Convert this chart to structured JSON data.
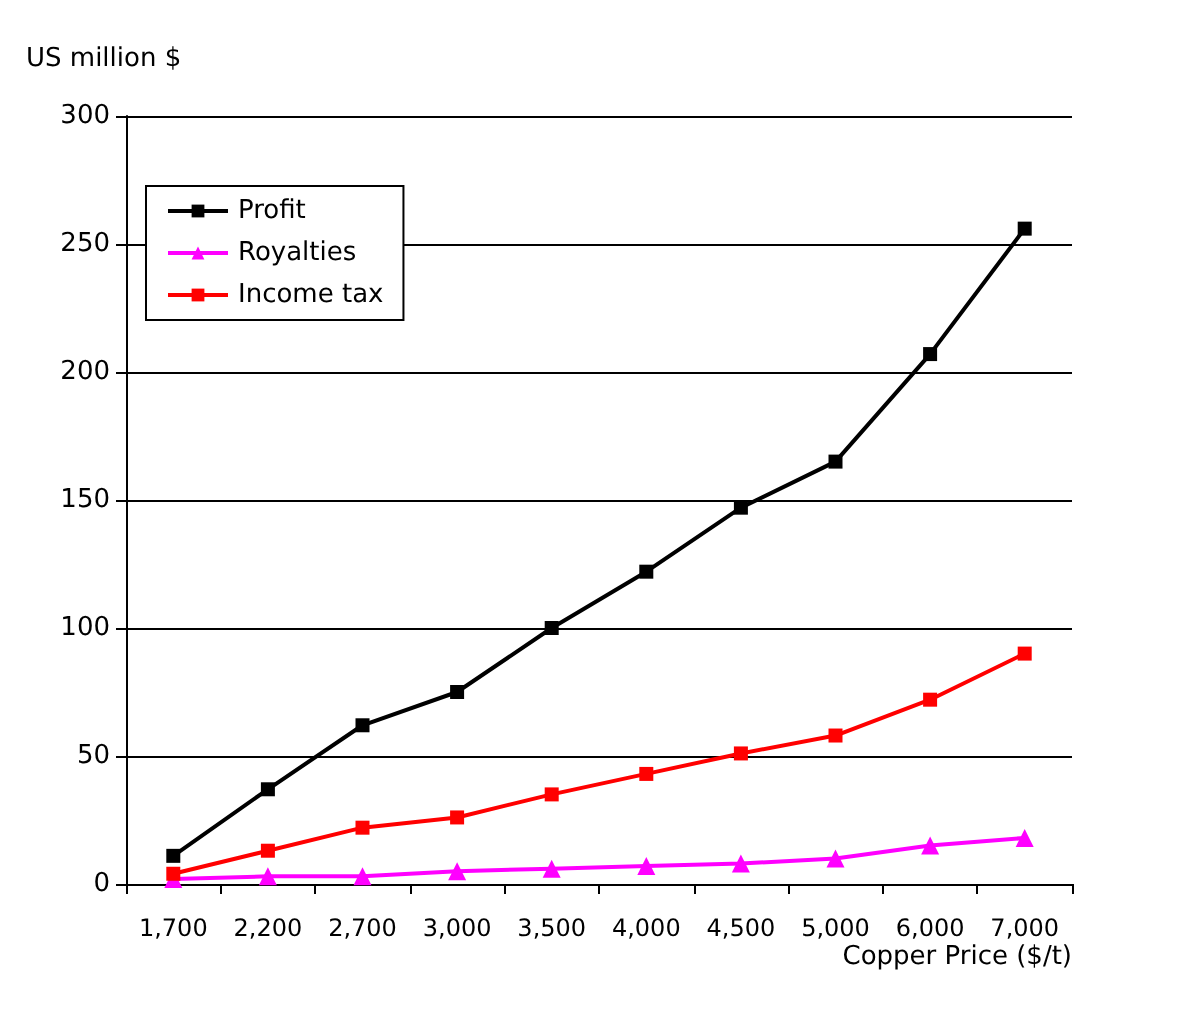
{
  "chart_data": {
    "type": "line",
    "xlabel": "Copper Price ($/t)",
    "ylabel": "US million $",
    "categories": [
      "1,700",
      "2,200",
      "2,700",
      "3,000",
      "3,500",
      "4,000",
      "4,500",
      "5,000",
      "6,000",
      "7,000"
    ],
    "series": [
      {
        "name": "Profit",
        "color": "#000000",
        "marker": "square",
        "values": [
          11,
          37,
          62,
          75,
          100,
          122,
          147,
          165,
          207,
          256
        ]
      },
      {
        "name": "Royalties",
        "color": "#ff00ff",
        "marker": "triangle",
        "values": [
          2,
          3,
          3,
          5,
          6,
          7,
          8,
          10,
          15,
          18
        ]
      },
      {
        "name": "Income tax",
        "color": "#ff0000",
        "marker": "square",
        "values": [
          4,
          13,
          22,
          26,
          35,
          43,
          51,
          58,
          72,
          90
        ]
      }
    ],
    "ylim": [
      0,
      300
    ],
    "yticks": [
      0,
      50,
      100,
      150,
      200,
      250,
      300
    ],
    "grid": "y",
    "legend": "top left",
    "line_style": "solid"
  }
}
